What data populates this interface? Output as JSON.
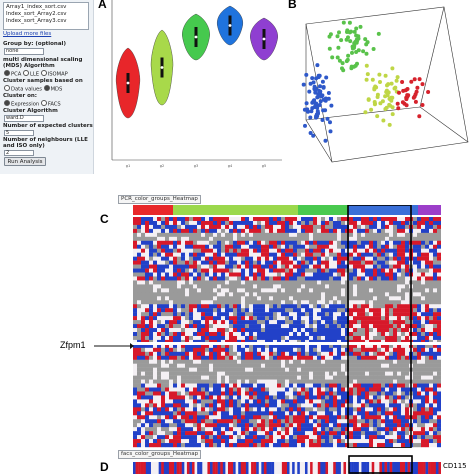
{
  "panel": {
    "files": [
      "Array1_index_sort.csv",
      "Index_sort_Array2.csv",
      "Index_sort_Array3.csv"
    ],
    "upload_link": "Upload more files",
    "group_by_label": "Group by: (optional)",
    "group_by_value": "none",
    "algorithm_label": "multi dimensional scaling (MDS) Algorithm",
    "algorithm_options": [
      "PCA",
      "LLE",
      "ISOMAP",
      "Data values",
      "MDS"
    ],
    "cluster_samples_label": "Cluster samples based on",
    "cluster_on_label": "Cluster on:",
    "cluster_on_options": [
      "Expression",
      "FACS"
    ],
    "cluster_algorithm_label": "Cluster Algorithm",
    "cluster_algorithm_value": "ward.D",
    "expected_clusters_label": "Number of expected clusters",
    "expected_clusters_value": "5",
    "neighbours_label": "Number of neighbours (LLE and ISO only)",
    "neighbours_value": "2",
    "run_button": "Run Analysis"
  },
  "panel_labels": {
    "a": "A",
    "b": "B",
    "c": "C",
    "d": "D"
  },
  "heatmap": {
    "dropdown": "PCR_color_groups_Heatmap",
    "gene_label": "Zfpm1",
    "colors": {
      "high": "#d7192a",
      "low": "#2241c8",
      "missing": "#9a9a9a",
      "mid": "#f4f0f4"
    },
    "group_bar_colors": [
      "#e8282a",
      "#9bd84c",
      "#49c94f",
      "#3a6fd8",
      "#9c3ec9"
    ]
  },
  "facs": {
    "dropdown": "facs_color_groups_Heatmap",
    "label": "CD115"
  },
  "violin": {
    "group_colors": [
      "#e8262a",
      "#a8d94a",
      "#46c94e",
      "#1f73dd",
      "#8f3fd1"
    ],
    "x_labels": [
      "g1",
      "g2",
      "g3",
      "g4",
      "g5"
    ]
  },
  "scatter_colors": {
    "blue": "#2e58c9",
    "green": "#59c24a",
    "yellow": "#bfd646",
    "red": "#d6222c"
  }
}
